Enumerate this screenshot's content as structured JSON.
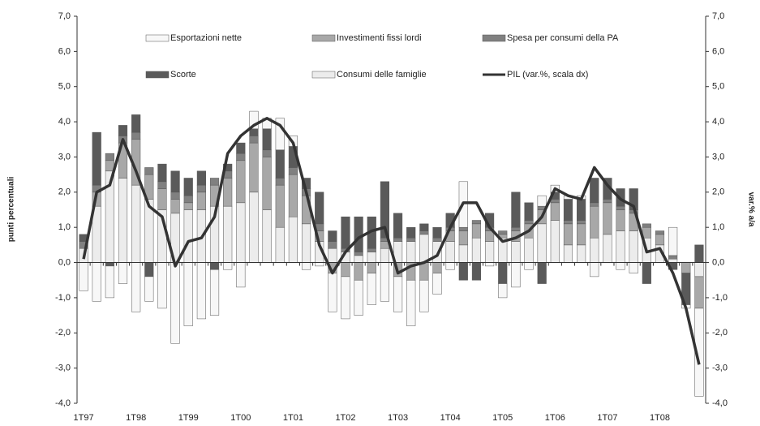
{
  "chart_data": {
    "type": "stacked-bar-line",
    "y_label": "punti percentuali",
    "y2_label": "var.% a/a",
    "categories": [
      "1T97",
      null,
      null,
      null,
      "1T98",
      null,
      null,
      null,
      "1T99",
      null,
      null,
      null,
      "1T00",
      null,
      null,
      null,
      "1T01",
      null,
      null,
      null,
      "1T02",
      null,
      null,
      null,
      "1T03",
      null,
      null,
      null,
      "1T04",
      null,
      null,
      null,
      "1T05",
      null,
      null,
      null,
      "1T06",
      null,
      null,
      null,
      "1T07",
      null,
      null,
      null,
      "1T08",
      null,
      null,
      null
    ],
    "ylim": [
      -4,
      7
    ],
    "y2lim": [
      -4,
      7
    ],
    "yticks": [
      {
        "value": -4,
        "label": "-4,0"
      },
      {
        "value": -3,
        "label": "-3,0"
      },
      {
        "value": -2,
        "label": "-2,0"
      },
      {
        "value": -1,
        "label": "-1,0"
      },
      {
        "value": 0,
        "label": "0,0"
      },
      {
        "value": 1,
        "label": "1,0"
      },
      {
        "value": 2,
        "label": "2,0"
      },
      {
        "value": 3,
        "label": "3,0"
      },
      {
        "value": 4,
        "label": "4,0"
      },
      {
        "value": 5,
        "label": "5,0"
      },
      {
        "value": 6,
        "label": "6,0"
      },
      {
        "value": 7,
        "label": "7,0"
      }
    ],
    "y2ticks": [
      {
        "value": -4,
        "label": "-4,0"
      },
      {
        "value": -3,
        "label": "-3,0"
      },
      {
        "value": -2,
        "label": "-2,0"
      },
      {
        "value": -1,
        "label": "-1,0"
      },
      {
        "value": 0,
        "label": "0,0"
      },
      {
        "value": 1,
        "label": "1,0"
      },
      {
        "value": 2,
        "label": "2,0"
      },
      {
        "value": 3,
        "label": "3,0"
      },
      {
        "value": 4,
        "label": "4,0"
      },
      {
        "value": 5,
        "label": "5,0"
      },
      {
        "value": 6,
        "label": "6,0"
      },
      {
        "value": 7,
        "label": "7,0"
      }
    ],
    "series": [
      {
        "name": "Consumi delle famiglie",
        "color": "#ececec",
        "values": [
          0.4,
          1.6,
          2.6,
          2.4,
          2.2,
          1.8,
          1.5,
          1.4,
          1.5,
          1.5,
          1.6,
          1.6,
          1.7,
          2.0,
          1.5,
          1.0,
          1.3,
          1.1,
          0.6,
          0.4,
          0.3,
          0.2,
          0.3,
          0.4,
          0.6,
          0.6,
          0.8,
          0.6,
          0.6,
          0.5,
          0.7,
          0.6,
          0.7,
          0.6,
          0.7,
          1.1,
          1.2,
          0.5,
          0.5,
          0.7,
          0.8,
          0.9,
          0.9,
          0.7,
          0.5,
          0.1,
          0.0,
          -0.4
        ]
      },
      {
        "name": "Investimenti fissi lordi",
        "color": "#a8a8a8",
        "values": [
          0.0,
          0.4,
          0.3,
          1.0,
          1.3,
          0.7,
          0.6,
          0.4,
          0.2,
          0.5,
          0.6,
          0.8,
          1.2,
          1.4,
          1.5,
          1.2,
          1.2,
          0.8,
          0.3,
          -0.3,
          -0.4,
          -0.5,
          -0.3,
          0.2,
          -0.4,
          -0.5,
          -0.5,
          -0.3,
          0.3,
          0.4,
          0.4,
          0.3,
          0.1,
          0.3,
          0.4,
          0.4,
          0.5,
          0.6,
          0.6,
          0.9,
          0.9,
          0.6,
          0.5,
          0.3,
          0.3,
          0.0,
          -0.3,
          -0.9
        ]
      },
      {
        "name": "Spesa per consumi della PA",
        "color": "#808080",
        "values": [
          0.2,
          0.2,
          0.2,
          0.2,
          0.2,
          0.2,
          0.2,
          0.2,
          0.2,
          0.2,
          0.2,
          0.2,
          0.2,
          0.2,
          0.2,
          0.2,
          0.2,
          0.2,
          0.2,
          0.2,
          0.1,
          0.1,
          0.1,
          0.1,
          0.1,
          0.1,
          0.1,
          0.1,
          0.1,
          0.1,
          0.1,
          0.1,
          0.1,
          0.1,
          0.1,
          0.1,
          0.1,
          0.1,
          0.1,
          0.1,
          0.1,
          0.1,
          0.1,
          0.1,
          0.1,
          0.1,
          0.0,
          0.0
        ]
      },
      {
        "name": "Scorte",
        "color": "#5a5a5a",
        "values": [
          0.2,
          1.5,
          -0.1,
          0.3,
          0.5,
          -0.4,
          0.5,
          0.6,
          0.5,
          0.4,
          -0.2,
          0.2,
          0.3,
          0.2,
          0.6,
          0.8,
          0.6,
          0.3,
          0.9,
          0.3,
          0.9,
          1.0,
          0.9,
          1.6,
          0.7,
          0.3,
          0.2,
          0.3,
          0.4,
          -0.5,
          -0.5,
          0.4,
          -0.6,
          1.0,
          0.5,
          -0.6,
          0.2,
          0.6,
          0.6,
          0.7,
          0.6,
          0.5,
          0.6,
          -0.6,
          0.0,
          -0.2,
          -0.9,
          0.5
        ]
      },
      {
        "name": "Esportazioni nette",
        "color": "#f7f7f7",
        "values": [
          -0.8,
          -1.1,
          -0.9,
          -0.6,
          -1.4,
          -0.7,
          -1.3,
          -2.3,
          -1.8,
          -1.6,
          -1.3,
          -0.2,
          -0.7,
          0.5,
          0.3,
          0.9,
          0.3,
          -0.2,
          -0.1,
          -1.1,
          -1.2,
          -1.0,
          -0.9,
          -1.1,
          -1.0,
          -1.3,
          -0.9,
          -0.6,
          -0.2,
          1.3,
          0.0,
          -0.1,
          -0.4,
          -0.7,
          -0.2,
          0.3,
          0.2,
          0.1,
          0.1,
          -0.4,
          0.0,
          -0.2,
          -0.3,
          0.0,
          0.0,
          0.8,
          -0.1,
          -2.5
        ]
      },
      {
        "name": "PIL (var.%, scala dx)",
        "color": "#333333",
        "type": "line",
        "axis": "y2",
        "values": [
          0.1,
          2.0,
          2.2,
          3.5,
          2.6,
          1.6,
          1.3,
          -0.1,
          0.6,
          0.7,
          1.3,
          3.1,
          3.6,
          3.9,
          4.1,
          3.9,
          3.4,
          2.0,
          0.5,
          -0.3,
          0.3,
          0.7,
          0.9,
          1.0,
          -0.3,
          -0.1,
          0.0,
          0.2,
          1.0,
          1.7,
          1.7,
          1.0,
          0.6,
          0.7,
          0.9,
          1.3,
          2.1,
          1.9,
          1.8,
          2.7,
          2.2,
          1.8,
          1.6,
          0.3,
          0.4,
          -0.3,
          -1.3,
          -2.9
        ]
      }
    ]
  }
}
